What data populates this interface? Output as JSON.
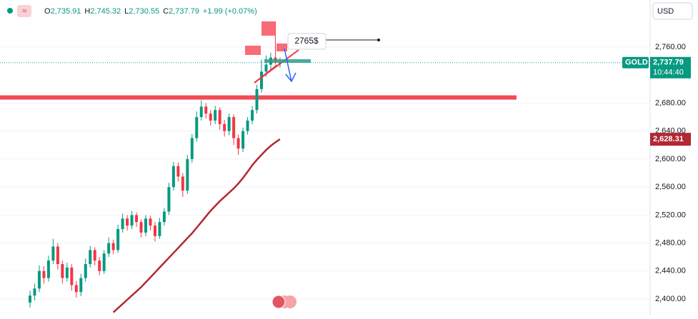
{
  "header": {
    "items": [
      {
        "label": "O",
        "value": "2,735.91"
      },
      {
        "label": "H",
        "value": "2,745.32"
      },
      {
        "label": "L",
        "value": "2,730.55"
      },
      {
        "label": "C",
        "value": "2,737.79"
      }
    ],
    "change": "+1.99 (+0.07%)",
    "currency": "USD"
  },
  "chart_data": {
    "type": "candlestick",
    "symbol": "GOLD",
    "up_color": "#089981",
    "down_color": "#f23645",
    "open": [
      2395,
      2405,
      2415,
      2440,
      2430,
      2455,
      2475,
      2450,
      2430,
      2445,
      2420,
      2410,
      2430,
      2450,
      2470,
      2455,
      2440,
      2465,
      2480,
      2470,
      2500,
      2515,
      2505,
      2520,
      2510,
      2495,
      2515,
      2505,
      2490,
      2510,
      2525,
      2560,
      2590,
      2575,
      2555,
      2600,
      2630,
      2660,
      2675,
      2665,
      2655,
      2670,
      2650,
      2640,
      2660,
      2630,
      2615,
      2640,
      2655,
      2670,
      2700,
      2725,
      2735,
      2745,
      2735.91
    ],
    "high": [
      2412,
      2422,
      2448,
      2447,
      2462,
      2486,
      2480,
      2455,
      2452,
      2450,
      2426,
      2436,
      2458,
      2476,
      2474,
      2460,
      2470,
      2488,
      2485,
      2506,
      2522,
      2520,
      2526,
      2524,
      2514,
      2520,
      2519,
      2510,
      2516,
      2530,
      2566,
      2596,
      2595,
      2580,
      2606,
      2636,
      2668,
      2684,
      2680,
      2670,
      2676,
      2674,
      2656,
      2665,
      2664,
      2635,
      2645,
      2660,
      2676,
      2706,
      2742,
      2748,
      2752,
      2795,
      2745.32
    ],
    "low": [
      2388,
      2398,
      2410,
      2422,
      2425,
      2450,
      2442,
      2422,
      2425,
      2412,
      2402,
      2404,
      2425,
      2445,
      2448,
      2434,
      2436,
      2460,
      2464,
      2466,
      2495,
      2498,
      2500,
      2503,
      2488,
      2490,
      2498,
      2482,
      2486,
      2505,
      2520,
      2555,
      2568,
      2546,
      2550,
      2595,
      2625,
      2655,
      2658,
      2648,
      2650,
      2642,
      2632,
      2634,
      2620,
      2606,
      2610,
      2635,
      2650,
      2665,
      2695,
      2718,
      2728,
      2735,
      2730.55
    ],
    "close": [
      2405,
      2415,
      2440,
      2430,
      2455,
      2475,
      2450,
      2430,
      2445,
      2420,
      2410,
      2430,
      2450,
      2470,
      2455,
      2440,
      2465,
      2480,
      2470,
      2500,
      2515,
      2505,
      2520,
      2510,
      2495,
      2515,
      2505,
      2490,
      2510,
      2525,
      2560,
      2590,
      2575,
      2555,
      2600,
      2630,
      2660,
      2675,
      2665,
      2655,
      2670,
      2650,
      2640,
      2660,
      2630,
      2615,
      2640,
      2655,
      2670,
      2700,
      2725,
      2735,
      2745,
      2740,
      2737.79
    ],
    "close_label": "2,737.79",
    "countdown": "10:44:40",
    "moving_average": {
      "color": "#b22833",
      "values": [
        null,
        null,
        null,
        null,
        null,
        null,
        null,
        null,
        null,
        null,
        null,
        null,
        null,
        null,
        null,
        null,
        null,
        null,
        2381,
        2387,
        2393,
        2399,
        2405,
        2411,
        2417,
        2424,
        2431,
        2438,
        2445,
        2452,
        2459,
        2466,
        2473,
        2480,
        2487,
        2494,
        2502,
        2510,
        2518,
        2526,
        2533,
        2540,
        2546,
        2552,
        2558,
        2565,
        2573,
        2582,
        2591,
        2599,
        2606,
        2613,
        2619,
        2624,
        2628.31
      ],
      "last_label": "2,628.31"
    },
    "levels": [
      {
        "value": 2688,
        "color": "#f23645"
      }
    ],
    "annotation": "2765$",
    "ylim": [
      2376.6,
      2827.3
    ],
    "yticks": [
      {
        "value": 2760,
        "label": "2,760.00"
      },
      {
        "value": 2680,
        "label": "2,680.00"
      },
      {
        "value": 2640,
        "label": "2,640.00"
      },
      {
        "value": 2600,
        "label": "2,600.00"
      },
      {
        "value": 2560,
        "label": "2,560.00"
      },
      {
        "value": 2520,
        "label": "2,520.00"
      },
      {
        "value": 2480,
        "label": "2,480.00"
      },
      {
        "value": 2440,
        "label": "2,440.00"
      },
      {
        "value": 2400,
        "label": "2,400.00"
      }
    ],
    "grid": true
  }
}
